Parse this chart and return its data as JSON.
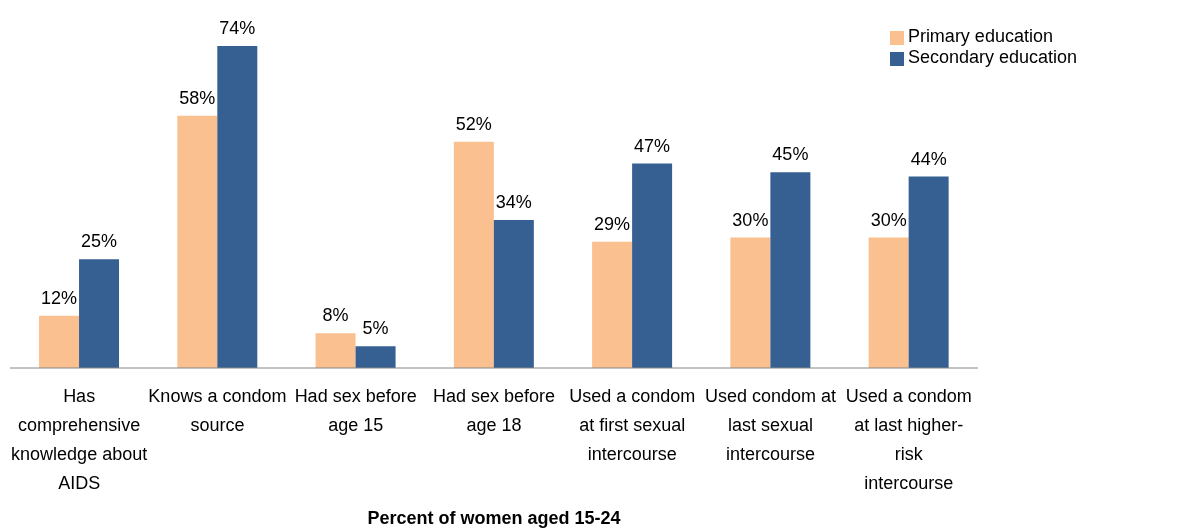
{
  "chart_data": {
    "type": "bar",
    "xlabel": "Percent of women aged 15-24",
    "categories": [
      "Has comprehensive knowledge about AIDS",
      "Knows a condom source",
      "Had sex before age 15",
      "Had sex before age 18",
      "Used a condom at first sexual intercourse",
      "Used condom at last sexual intercourse",
      "Used a condom at last higher-risk intercourse"
    ],
    "series": [
      {
        "name": "Primary education",
        "color": "#fac090",
        "values": [
          12,
          58,
          8,
          52,
          29,
          30,
          30
        ],
        "value_labels": [
          "12%",
          "58%",
          "8%",
          "52%",
          "29%",
          "30%",
          "30%"
        ]
      },
      {
        "name": "Secondary education",
        "color": "#376092",
        "values": [
          25,
          74,
          5,
          34,
          47,
          45,
          44
        ],
        "value_labels": [
          "25%",
          "74%",
          "5%",
          "34%",
          "47%",
          "45%",
          "44%"
        ]
      }
    ],
    "legend": "top right",
    "grid": false
  }
}
